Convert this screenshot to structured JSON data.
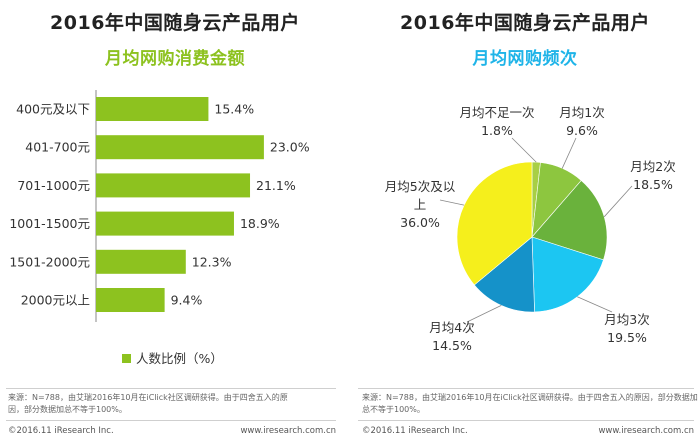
{
  "left": {
    "title": "2016年中国随身云产品用户",
    "subtitle": "月均网购消费金额",
    "subtitle_color": "#8dc21f",
    "legend_label": "人数比例（%）",
    "source": "来源：N=788，由艾瑞2016年10月在iClick社区调研获得。由于四舍五入的原因，部分数据加总不等于100%。",
    "copyright": "©2016.11 iResearch Inc.",
    "website": "www.iresearch.com.cn"
  },
  "right": {
    "title": "2016年中国随身云产品用户",
    "subtitle": "月均网购频次",
    "subtitle_color": "#1fb4e8",
    "source": "来源：N=788，由艾瑞2016年10月在iClick社区调研获得。由于四舍五入的原因，部分数据加总不等于100%。",
    "copyright": "©2016.11 iResearch Inc.",
    "website": "www.iresearch.com.cn"
  },
  "chart_data": [
    {
      "type": "bar",
      "orientation": "horizontal",
      "title": "2016年中国随身云产品用户",
      "subtitle": "月均网购消费金额",
      "categories": [
        "400元及以下",
        "401-700元",
        "701-1000元",
        "1001-1500元",
        "1501-2000元",
        "2000元以上"
      ],
      "series": [
        {
          "name": "人数比例（%）",
          "values": [
            15.4,
            23.0,
            21.1,
            18.9,
            12.3,
            9.4
          ],
          "labels": [
            "15.4%",
            "23.0%",
            "21.1%",
            "18.9%",
            "12.3%",
            "9.4%"
          ],
          "color": "#8dc21f"
        }
      ],
      "xlim": [
        0,
        25
      ],
      "legend": "bottom"
    },
    {
      "type": "pie",
      "title": "2016年中国随身云产品用户",
      "subtitle": "月均网购频次",
      "slices": [
        {
          "label": "月均不足一次",
          "value": 1.8,
          "value_label": "1.8%",
          "color": "#a8cf45"
        },
        {
          "label": "月均1次",
          "value": 9.6,
          "value_label": "9.6%",
          "color": "#8dc63f"
        },
        {
          "label": "月均2次",
          "value": 18.5,
          "value_label": "18.5%",
          "color": "#6ab23c"
        },
        {
          "label": "月均3次",
          "value": 19.5,
          "value_label": "19.5%",
          "color": "#1cc6f2"
        },
        {
          "label": "月均4次",
          "value": 14.5,
          "value_label": "14.5%",
          "color": "#1592c9"
        },
        {
          "label": "月均5次及以上",
          "value": 36.0,
          "value_label": "36.0%",
          "color": "#f5ef1c"
        }
      ]
    }
  ]
}
